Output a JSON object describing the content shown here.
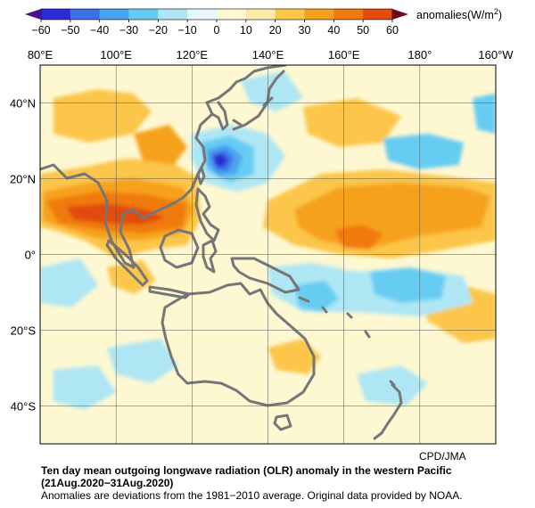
{
  "colorbar": {
    "ticks": [
      "−60",
      "−50",
      "−40",
      "−30",
      "−20",
      "−10",
      "0",
      "10",
      "20",
      "30",
      "40",
      "50",
      "60"
    ],
    "unit_label": "anomalies(W/m",
    "unit_sup": "2",
    "unit_close": ")",
    "colors": [
      "#2b2bd6",
      "#3d6fe6",
      "#4aa3f0",
      "#66ccf2",
      "#aee6f4",
      "#e6f7fa",
      "#fdf8d2",
      "#fde9a8",
      "#fbc64a",
      "#f6a11e",
      "#f07a10",
      "#e24b0c"
    ]
  },
  "map": {
    "lon_labels": [
      "80°E",
      "100°E",
      "120°E",
      "140°E",
      "160°E",
      "180°",
      "160°W"
    ],
    "lat_labels": [
      "40°N",
      "20°N",
      "0°",
      "20°S",
      "40°S"
    ],
    "lon_range": [
      80,
      200
    ],
    "lat_range": [
      -50,
      50
    ],
    "background_color": "#fdf8d2",
    "coast_color": "#767676"
  },
  "caption": {
    "credit": "CPD/JMA",
    "title": "Ten day mean outgoing longwave radiation (OLR) anomaly in the western Pacific",
    "period": "(21Aug.2020−31Aug.2020)",
    "note": "Anomalies are deviations from the 1981−2010 average. Original data provided by NOAA."
  }
}
